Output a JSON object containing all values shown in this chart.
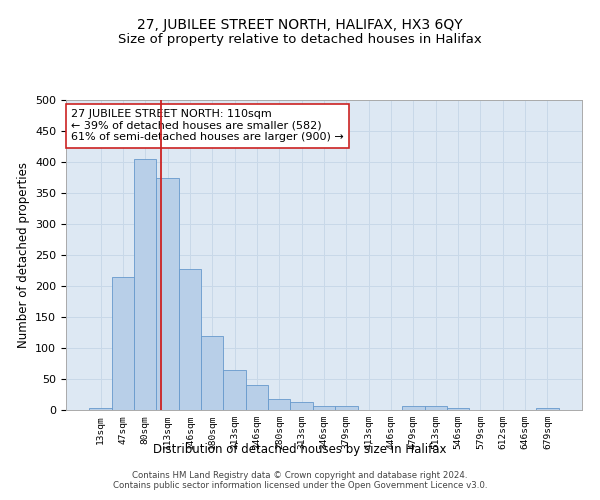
{
  "title": "27, JUBILEE STREET NORTH, HALIFAX, HX3 6QY",
  "subtitle": "Size of property relative to detached houses in Halifax",
  "xlabel": "Distribution of detached houses by size in Halifax",
  "ylabel": "Number of detached properties",
  "categories": [
    "13sqm",
    "47sqm",
    "80sqm",
    "113sqm",
    "146sqm",
    "180sqm",
    "213sqm",
    "246sqm",
    "280sqm",
    "313sqm",
    "346sqm",
    "379sqm",
    "413sqm",
    "446sqm",
    "479sqm",
    "513sqm",
    "546sqm",
    "579sqm",
    "612sqm",
    "646sqm",
    "679sqm"
  ],
  "values": [
    3,
    215,
    405,
    375,
    228,
    120,
    65,
    40,
    17,
    13,
    7,
    6,
    0,
    0,
    7,
    7,
    3,
    0,
    0,
    0,
    3
  ],
  "bar_color": "#b8cfe8",
  "bar_edge_color": "#6699cc",
  "vline_x": 2.72,
  "vline_color": "#cc2222",
  "annotation_text": "27 JUBILEE STREET NORTH: 110sqm\n← 39% of detached houses are smaller (582)\n61% of semi-detached houses are larger (900) →",
  "annotation_box_color": "#ffffff",
  "annotation_box_edge": "#cc2222",
  "ylim": [
    0,
    500
  ],
  "grid_color": "#c8d8e8",
  "background_color": "#dde8f3",
  "footer": "Contains HM Land Registry data © Crown copyright and database right 2024.\nContains public sector information licensed under the Open Government Licence v3.0.",
  "title_fontsize": 10,
  "subtitle_fontsize": 9.5
}
